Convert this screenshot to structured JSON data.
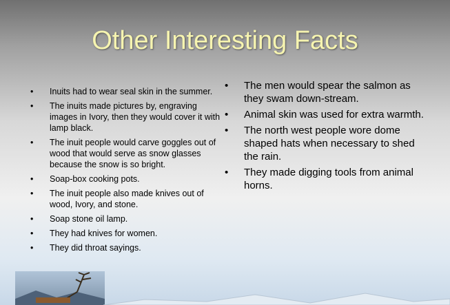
{
  "slide": {
    "title": "Other Interesting Facts",
    "left_bullets": [
      "Inuits had to wear seal skin in the summer.",
      "The inuits made pictures by, engraving images in Ivory, then they would cover it with lamp black.",
      "The inuit  people would carve goggles out of wood that would serve as snow glasses because the snow is so bright.",
      "Soap-box cooking pots.",
      "The inuit people also made knives out of wood, Ivory, and stone.",
      "Soap stone oil lamp.",
      "They had knives for women.",
      "They did throat sayings."
    ],
    "right_bullets": [
      "The men would spear the salmon as they swam down-stream.",
      "Animal skin was used for extra warmth.",
      "The north west people wore dome shaped hats when necessary to shed the rain.",
      "They made digging tools from animal horns."
    ]
  }
}
